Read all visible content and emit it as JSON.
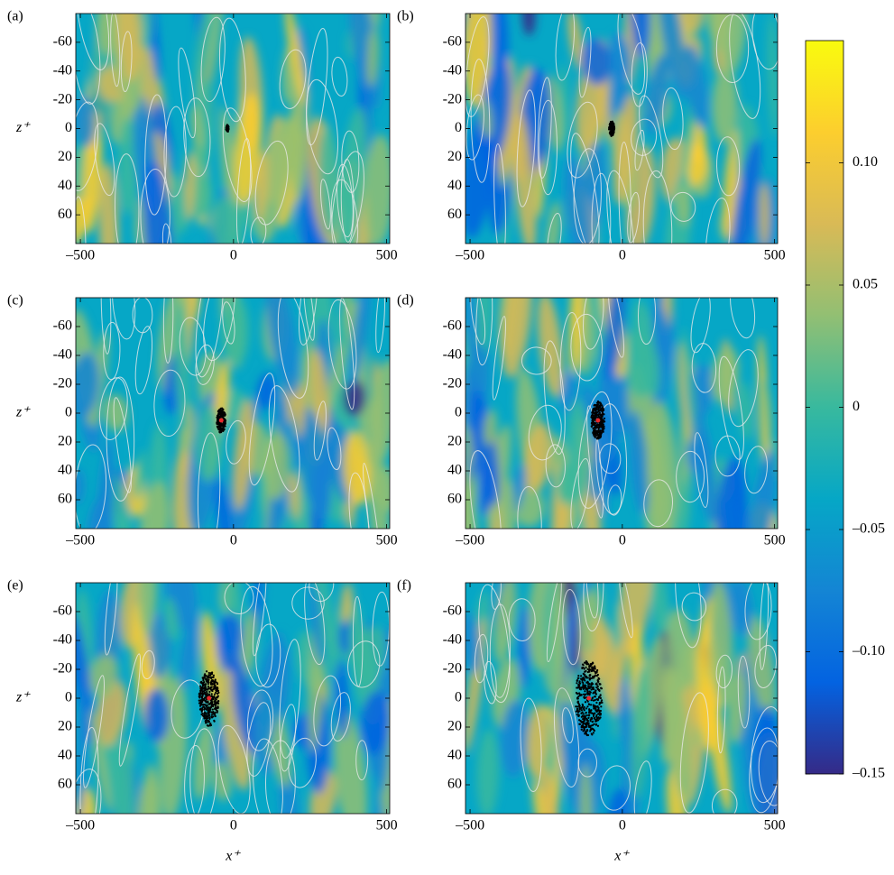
{
  "chart_data": [
    {
      "type": "heatmap",
      "panel_label": "(a)",
      "ylabel": "z⁺",
      "xlim": [
        -515,
        510
      ],
      "ylim": [
        -80,
        80
      ],
      "y_reversed": true,
      "xticks": [
        {
          "value": -500,
          "label": "–500"
        },
        0,
        500
      ],
      "yticks": [
        -60,
        -40,
        -20,
        0,
        20,
        40,
        60
      ]
    },
    {
      "type": "heatmap",
      "panel_label": "(b)",
      "xlim": [
        -515,
        510
      ],
      "ylim": [
        -80,
        80
      ],
      "y_reversed": true,
      "xticks": [
        {
          "value": -500,
          "label": "–500"
        },
        0,
        500
      ],
      "yticks": [
        -60,
        -40,
        -20,
        0,
        20,
        40,
        60
      ]
    },
    {
      "type": "heatmap",
      "panel_label": "(c)",
      "ylabel": "z⁺",
      "xlim": [
        -515,
        510
      ],
      "ylim": [
        -80,
        80
      ],
      "y_reversed": true,
      "xticks": [
        {
          "value": -500,
          "label": "–500"
        },
        0,
        500
      ],
      "yticks": [
        -60,
        -40,
        -20,
        0,
        20,
        40,
        60
      ]
    },
    {
      "type": "heatmap",
      "panel_label": "(d)",
      "xlim": [
        -515,
        510
      ],
      "ylim": [
        -80,
        80
      ],
      "y_reversed": true,
      "xticks": [
        {
          "value": -500,
          "label": "–500"
        },
        0,
        500
      ],
      "yticks": [
        -60,
        -40,
        -20,
        0,
        20,
        40,
        60
      ]
    },
    {
      "type": "heatmap",
      "panel_label": "(e)",
      "ylabel": "z⁺",
      "xlabel": "x⁺",
      "xlim": [
        -515,
        510
      ],
      "ylim": [
        -80,
        80
      ],
      "y_reversed": true,
      "xticks": [
        {
          "value": -500,
          "label": "–500"
        },
        0,
        500
      ],
      "yticks": [
        -60,
        -40,
        -20,
        0,
        20,
        40,
        60
      ]
    },
    {
      "type": "heatmap",
      "panel_label": "(f)",
      "xlabel": "x⁺",
      "xlim": [
        -515,
        510
      ],
      "ylim": [
        -80,
        80
      ],
      "y_reversed": true,
      "xticks": [
        {
          "value": -500,
          "label": "–500"
        },
        0,
        500
      ],
      "yticks": [
        -60,
        -40,
        -20,
        0,
        20,
        40,
        60
      ]
    }
  ],
  "colorbar": {
    "clim": [
      -0.15,
      0.15
    ],
    "ticks": [
      {
        "value": 0.1,
        "label": "0.10"
      },
      0.05,
      0,
      {
        "value": -0.05,
        "label": "–0.05"
      },
      {
        "value": -0.1,
        "label": "–0.10"
      },
      {
        "value": -0.15,
        "label": "–0.15"
      }
    ],
    "colors": [
      "#352a87",
      "#0363e1",
      "#1485d4",
      "#06a7c6",
      "#38b99e",
      "#92bf73",
      "#d9ba56",
      "#fcce2e",
      "#f9fb0e"
    ]
  }
}
